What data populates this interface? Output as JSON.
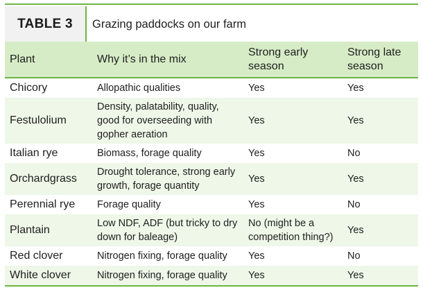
{
  "header": {
    "badge": "TABLE 3",
    "caption": "Grazing paddocks on our farm"
  },
  "columns": [
    "Plant",
    "Why it’s in the mix",
    "Strong early season",
    "Strong late season"
  ],
  "rows": [
    {
      "plant": "Chicory",
      "why": "Allopathic qualities",
      "early": "Yes",
      "late": "Yes"
    },
    {
      "plant": "Festulolium",
      "why": "Density, palatability, quality, good for overseeding with gopher aeration",
      "early": "Yes",
      "late": "Yes"
    },
    {
      "plant": "Italian rye",
      "why": "Biomass, forage quality",
      "early": "Yes",
      "late": "No"
    },
    {
      "plant": "Orchardgrass",
      "why": "Drought tolerance, strong early growth, forage quantity",
      "early": "Yes",
      "late": "Yes"
    },
    {
      "plant": "Perennial rye",
      "why": "Forage quality",
      "early": "Yes",
      "late": "No"
    },
    {
      "plant": "Plantain",
      "why": "Low NDF, ADF (but tricky to dry down for baleage)",
      "early": "No (might be a competition thing?)",
      "late": "Yes"
    },
    {
      "plant": "Red clover",
      "why": "Nitrogen fixing, forage quality",
      "early": "Yes",
      "late": "No"
    },
    {
      "plant": "White clover",
      "why": "Nitrogen fixing, forage quality",
      "early": "Yes",
      "late": "Yes"
    }
  ],
  "colors": {
    "accent": "#6db544",
    "header_bg": "#d6ecc6",
    "stripe": "#eef7e8",
    "badge_bg": "#f1f1f1"
  }
}
